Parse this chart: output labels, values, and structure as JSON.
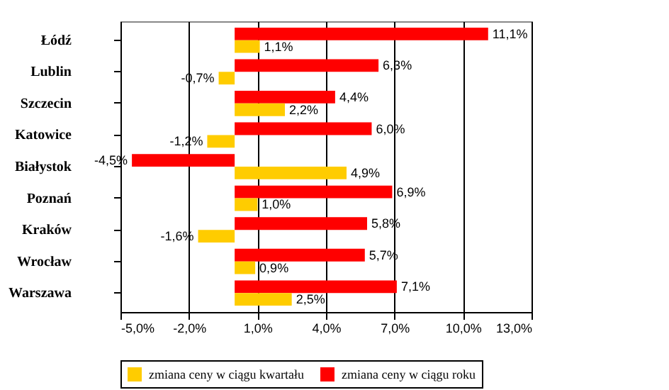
{
  "chart_data": {
    "type": "bar",
    "orientation": "horizontal",
    "categories": [
      "Łódź",
      "Lublin",
      "Szczecin",
      "Katowice",
      "Białystok",
      "Poznań",
      "Kraków",
      "Wrocław",
      "Warszawa"
    ],
    "series": [
      {
        "name": "zmiana ceny w ciągu roku",
        "color": "#ff0000",
        "values": [
          11.1,
          6.3,
          4.4,
          6.0,
          -4.5,
          6.9,
          5.8,
          5.7,
          7.1
        ],
        "value_labels": [
          "11,1%",
          "6,3%",
          "4,4%",
          "6,0%",
          "-4,5%",
          "6,9%",
          "5,8%",
          "5,7%",
          "7,1%"
        ]
      },
      {
        "name": "zmiana ceny w ciągu kwartału",
        "color": "#ffcc00",
        "values": [
          1.1,
          -0.7,
          2.2,
          -1.2,
          4.9,
          1.0,
          -1.6,
          0.9,
          2.5
        ],
        "value_labels": [
          "1,1%",
          "-0,7%",
          "2,2%",
          "-1,2%",
          "4,9%",
          "1,0%",
          "-1,6%",
          "0,9%",
          "2,5%"
        ]
      }
    ],
    "xlim": [
      -5,
      13
    ],
    "xticks": [
      {
        "value": -5,
        "label": "-5,0%"
      },
      {
        "value": -2,
        "label": "-2,0%"
      },
      {
        "value": 1,
        "label": "1,0%"
      },
      {
        "value": 4,
        "label": "4,0%"
      },
      {
        "value": 7,
        "label": "7,0%"
      },
      {
        "value": 10,
        "label": "10,0%"
      },
      {
        "value": 13,
        "label": "13,0%"
      }
    ],
    "grid": "x",
    "legend": "bottom"
  }
}
